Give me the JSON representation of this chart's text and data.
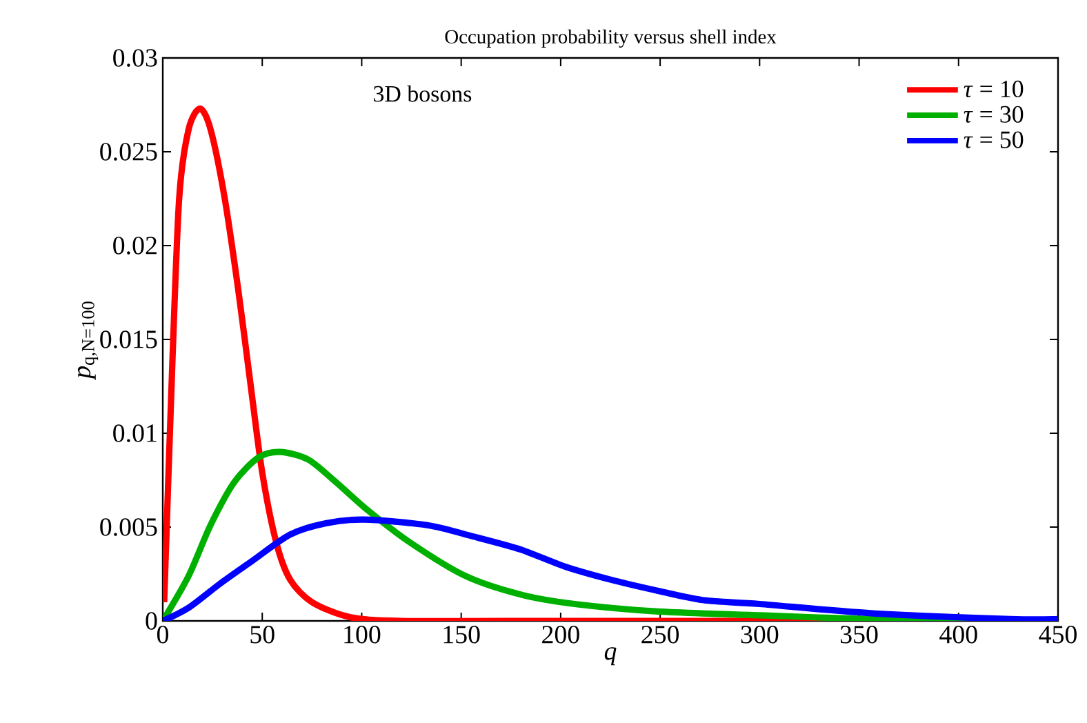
{
  "chart_data": {
    "type": "line",
    "title": "Occupation probability versus shell index",
    "xlabel": "q",
    "ylabel": "*p*$_{q,N=100}$",
    "annotations": [
      "3D bosons"
    ],
    "legend": "top right",
    "grid": false,
    "line_style": "solid",
    "xlim": [
      0,
      450
    ],
    "ylim": [
      0,
      0.03
    ],
    "xticks": [
      0,
      50,
      100,
      150,
      200,
      250,
      300,
      350,
      400,
      450
    ],
    "yticks": [
      0,
      0.005,
      0.01,
      0.015,
      0.02,
      0.025,
      0.03
    ],
    "series": [
      {
        "name": "*τ* = 10",
        "color": "#ff0000",
        "x": [
          0.7,
          4.9,
          8.3,
          13,
          18.7,
          24,
          31,
          38,
          44,
          50,
          57,
          64,
          75,
          94,
          120,
          200,
          300,
          450
        ],
        "values": [
          0.001,
          0.014,
          0.0226,
          0.0262,
          0.0273,
          0.0262,
          0.0226,
          0.0176,
          0.0127,
          0.0079,
          0.0042,
          0.0022,
          0.001,
          0.0002,
          0,
          0,
          0,
          0
        ]
      },
      {
        "name": "*τ* = 30",
        "color": "#00b000",
        "x": [
          0,
          13,
          24,
          36,
          48,
          59,
          73,
          87,
          103,
          124,
          152,
          180,
          207,
          249,
          300,
          357,
          450
        ],
        "values": [
          0,
          0.0024,
          0.0051,
          0.0074,
          0.0087,
          0.009,
          0.0086,
          0.0074,
          0.0059,
          0.0042,
          0.0024,
          0.0014,
          0.0009,
          0.0005,
          0.0003,
          0.0001,
          0
        ]
      },
      {
        "name": "*τ* = 50",
        "color": "#0000ff",
        "x": [
          0,
          13,
          29,
          45,
          64,
          82,
          101,
          133,
          156,
          180,
          202,
          225,
          249,
          272,
          300,
          357,
          426,
          450
        ],
        "values": [
          0,
          0.0007,
          0.002,
          0.0032,
          0.0046,
          0.0052,
          0.0054,
          0.0051,
          0.0045,
          0.0038,
          0.0029,
          0.0022,
          0.0016,
          0.0011,
          0.0009,
          0.0004,
          0.0001,
          0.0001
        ]
      }
    ]
  }
}
